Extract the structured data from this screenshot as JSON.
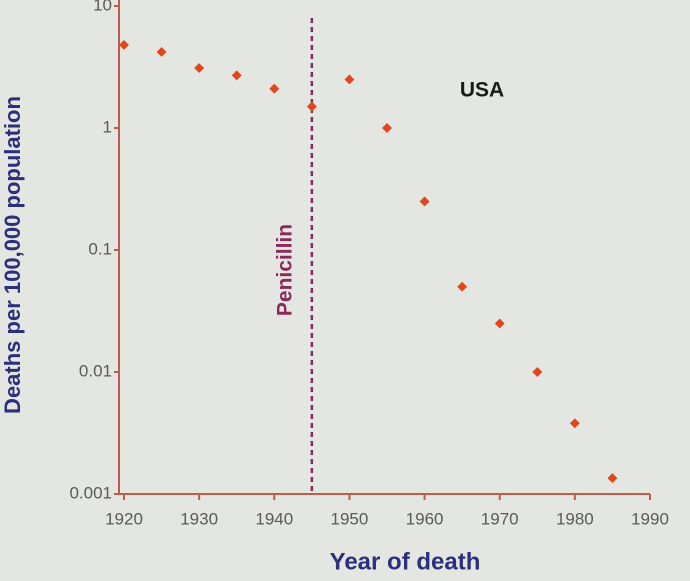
{
  "chart_data": {
    "type": "scatter",
    "x_label": "Year of death",
    "y_label": "Deaths per 100,000 population",
    "x": [
      1920,
      1925,
      1930,
      1935,
      1940,
      1945,
      1950,
      1955,
      1960,
      1965,
      1970,
      1975,
      1980,
      1985
    ],
    "values": [
      4.8,
      4.2,
      3.1,
      2.7,
      2.1,
      1.5,
      2.5,
      1.0,
      0.25,
      0.05,
      0.025,
      0.01,
      0.0038,
      0.00135
    ],
    "color": "#e0481c",
    "xlim": [
      1920,
      1990
    ],
    "xticks": [
      1920,
      1930,
      1940,
      1950,
      1960,
      1970,
      1980,
      1990
    ],
    "ylim": [
      0.001,
      10
    ],
    "yticks": [
      0.001,
      0.01,
      0.1,
      1,
      10
    ],
    "log_y": true,
    "vline": {
      "x": 1945,
      "label": "Penicillin",
      "color": "#8a2a5c"
    },
    "annotation": "USA"
  }
}
